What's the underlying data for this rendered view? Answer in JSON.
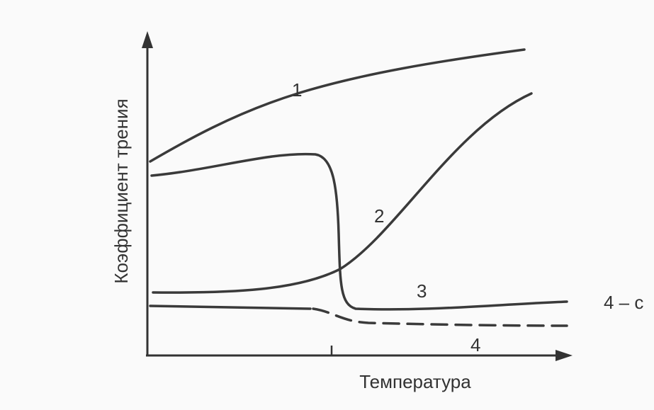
{
  "axes": {
    "y_label": "Коэффициент трения",
    "x_label": "Температура"
  },
  "curves": [
    {
      "label": "1"
    },
    {
      "label": "2"
    },
    {
      "label": "3"
    },
    {
      "label": "4"
    }
  ],
  "note": "4 – с"
}
